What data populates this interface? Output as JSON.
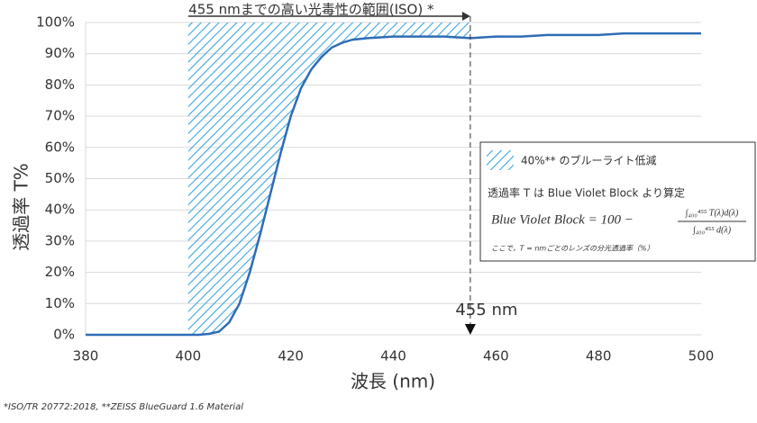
{
  "chart_data": {
    "type": "line",
    "range_annotation": {
      "label": "455 nmまでの高い光毒性の範囲(ISO) *",
      "from": 400,
      "to": 455
    },
    "x": [
      380,
      385,
      390,
      395,
      400,
      402,
      404,
      406,
      408,
      410,
      412,
      414,
      416,
      418,
      420,
      422,
      424,
      426,
      428,
      430,
      432,
      435,
      440,
      445,
      450,
      455,
      460,
      465,
      470,
      475,
      480,
      485,
      490,
      495,
      500
    ],
    "series": [
      {
        "color": "#2e6cb5",
        "values": [
          0,
          0,
          0,
          0,
          0,
          0,
          0.3,
          1,
          4,
          10,
          20,
          32,
          45,
          58,
          70,
          79,
          85,
          89,
          92,
          93.5,
          94.5,
          95,
          95.5,
          95.5,
          95.5,
          95,
          95.5,
          95.5,
          96,
          96,
          96,
          96.5,
          96.5,
          96.5,
          96.5
        ]
      }
    ],
    "xlim": [
      380,
      500
    ],
    "xticks": [
      380,
      400,
      420,
      440,
      460,
      480,
      500
    ],
    "ylim": [
      0,
      100
    ],
    "yticks": [
      {
        "value": 0,
        "label": "0%"
      },
      {
        "value": 10,
        "label": "10%"
      },
      {
        "value": 20,
        "label": "20%"
      },
      {
        "value": 30,
        "label": "30%"
      },
      {
        "value": 40,
        "label": "40%"
      },
      {
        "value": 50,
        "label": "50%"
      },
      {
        "value": 60,
        "label": "60%"
      },
      {
        "value": 70,
        "label": "70%"
      },
      {
        "value": 80,
        "label": "80%"
      },
      {
        "value": 90,
        "label": "90%"
      },
      {
        "value": 100,
        "label": "100%"
      }
    ],
    "grid": true,
    "x_label": "波長 (nm)",
    "y_label": "透過率 T%",
    "shaded_region": {
      "x_range": [
        400,
        455
      ],
      "color": "#3aa6dd",
      "label": "40%** のブルーライト低減"
    },
    "marker": {
      "x": 455,
      "label": "455 nm"
    },
    "info_box": {
      "text": "透過率 T は Blue Violet Block より算定",
      "formula": {
        "lhs": "Blue Violet Block = 100 −",
        "numerator": "∫₄₀₀⁴⁵⁵ T(λ)d(λ)",
        "denominator": "∫₄₀₀⁴⁵⁵ d(λ)"
      },
      "note": "ここで，T = nmごとのレンズの分光透過率（%）"
    },
    "footnote": "*ISO/TR 20772:2018, **ZEISS BlueGuard 1.6 Material"
  }
}
